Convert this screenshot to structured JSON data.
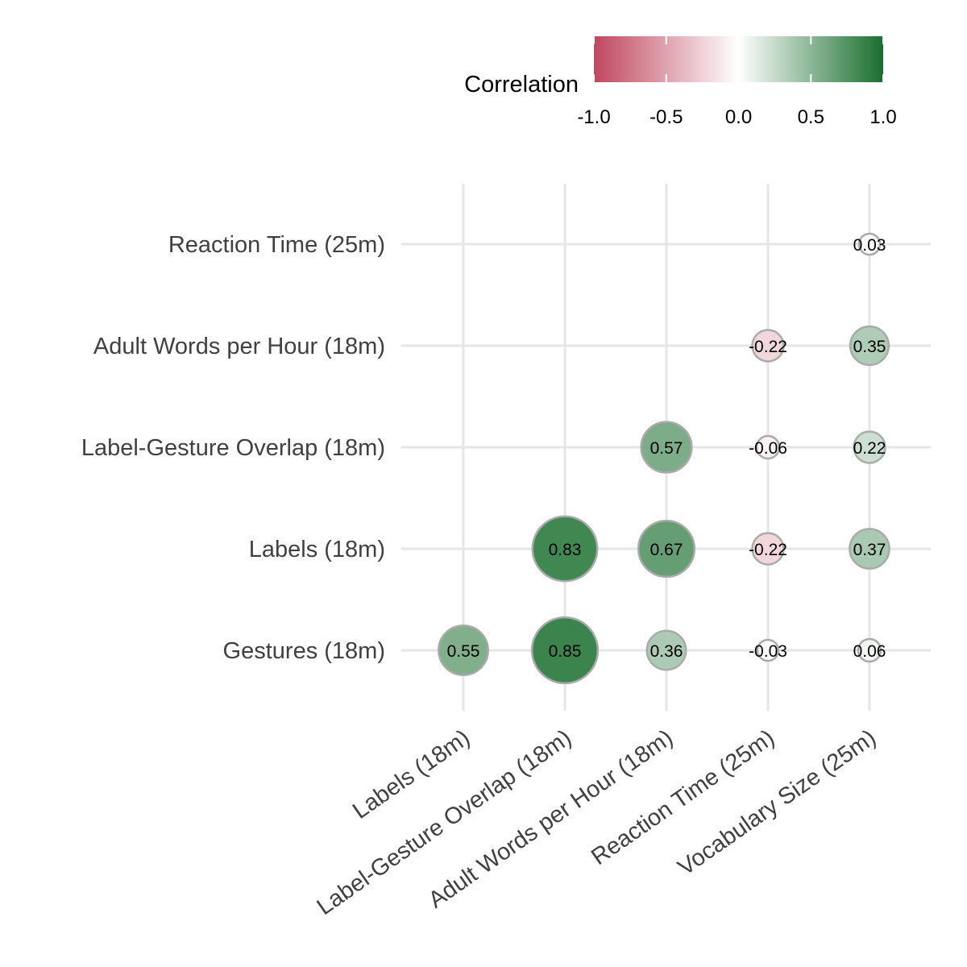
{
  "chart_data": {
    "type": "correlation-matrix",
    "legend": {
      "title": "Correlation",
      "placement": "top",
      "ticks": [
        "-1.0",
        "-0.5",
        "0.0",
        "0.5",
        "1.0"
      ],
      "tick_values": [
        -1.0,
        -0.5,
        0.0,
        0.5,
        1.0
      ],
      "range": [
        -1.0,
        1.0
      ],
      "colors": {
        "low": "#c0475e",
        "mid": "#ffffff",
        "high": "#1a6e2e"
      }
    },
    "x_categories": [
      "Labels (18m)",
      "Label-Gesture Overlap (18m)",
      "Adult Words per Hour (18m)",
      "Reaction Time (25m)",
      "Vocabulary Size (25m)"
    ],
    "y_categories": [
      "Gestures (18m)",
      "Labels (18m)",
      "Label-Gesture Overlap (18m)",
      "Adult Words per Hour (18m)",
      "Reaction Time (25m)"
    ],
    "cells": [
      {
        "x": "Labels (18m)",
        "y": "Gestures (18m)",
        "value": 0.55,
        "label": "0.55"
      },
      {
        "x": "Label-Gesture Overlap (18m)",
        "y": "Gestures (18m)",
        "value": 0.85,
        "label": "0.85"
      },
      {
        "x": "Adult Words per Hour (18m)",
        "y": "Gestures (18m)",
        "value": 0.36,
        "label": "0.36"
      },
      {
        "x": "Reaction Time (25m)",
        "y": "Gestures (18m)",
        "value": -0.03,
        "label": "-0.03"
      },
      {
        "x": "Vocabulary Size (25m)",
        "y": "Gestures (18m)",
        "value": 0.06,
        "label": "0.06"
      },
      {
        "x": "Label-Gesture Overlap (18m)",
        "y": "Labels (18m)",
        "value": 0.83,
        "label": "0.83"
      },
      {
        "x": "Adult Words per Hour (18m)",
        "y": "Labels (18m)",
        "value": 0.67,
        "label": "0.67"
      },
      {
        "x": "Reaction Time (25m)",
        "y": "Labels (18m)",
        "value": -0.22,
        "label": "-0.22"
      },
      {
        "x": "Vocabulary Size (25m)",
        "y": "Labels (18m)",
        "value": 0.37,
        "label": "0.37"
      },
      {
        "x": "Adult Words per Hour (18m)",
        "y": "Label-Gesture Overlap (18m)",
        "value": 0.57,
        "label": "0.57"
      },
      {
        "x": "Reaction Time (25m)",
        "y": "Label-Gesture Overlap (18m)",
        "value": -0.06,
        "label": "-0.06"
      },
      {
        "x": "Vocabulary Size (25m)",
        "y": "Label-Gesture Overlap (18m)",
        "value": 0.22,
        "label": "0.22"
      },
      {
        "x": "Reaction Time (25m)",
        "y": "Adult Words per Hour (18m)",
        "value": -0.22,
        "label": "-0.22"
      },
      {
        "x": "Vocabulary Size (25m)",
        "y": "Adult Words per Hour (18m)",
        "value": 0.35,
        "label": "0.35"
      },
      {
        "x": "Vocabulary Size (25m)",
        "y": "Reaction Time (25m)",
        "value": 0.03,
        "label": "0.03"
      }
    ],
    "grid": true,
    "circle_border_color": "#aaaaaa",
    "grid_color": "#e6e6e6"
  }
}
